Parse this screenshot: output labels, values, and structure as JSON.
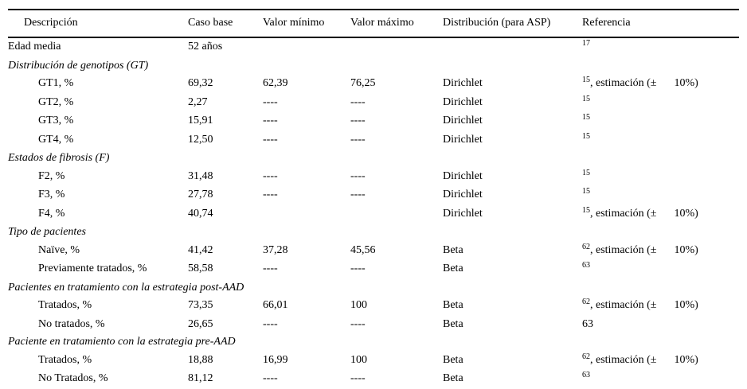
{
  "table": {
    "columns": [
      "Descripción",
      "Caso base",
      "Valor mínimo",
      "Valor máximo",
      "Distribución (para ASP)",
      "Referencia"
    ],
    "rows": [
      {
        "type": "data",
        "indent": false,
        "desc": "Edad media",
        "base": "52 años",
        "min": "",
        "max": "",
        "dist": "",
        "ref_sup": "17",
        "ref_text": "",
        "ref_pct": "",
        "ref_plain": ""
      },
      {
        "type": "section",
        "desc": "Distribución de genotipos (GT)"
      },
      {
        "type": "data",
        "indent": true,
        "desc": "GT1, %",
        "base": "69,32",
        "min": "62,39",
        "max": "76,25",
        "dist": "Dirichlet",
        "ref_sup": "15",
        "ref_text": ", estimación (±",
        "ref_pct": "10%)",
        "ref_plain": ""
      },
      {
        "type": "data",
        "indent": true,
        "desc": "GT2, %",
        "base": "2,27",
        "min": "----",
        "max": "----",
        "dist": "Dirichlet",
        "ref_sup": "15",
        "ref_text": "",
        "ref_pct": "",
        "ref_plain": ""
      },
      {
        "type": "data",
        "indent": true,
        "desc": "GT3, %",
        "base": "15,91",
        "min": "----",
        "max": "----",
        "dist": "Dirichlet",
        "ref_sup": "15",
        "ref_text": "",
        "ref_pct": "",
        "ref_plain": ""
      },
      {
        "type": "data",
        "indent": true,
        "desc": "GT4, %",
        "base": "12,50",
        "min": "----",
        "max": "----",
        "dist": "Dirichlet",
        "ref_sup": "15",
        "ref_text": "",
        "ref_pct": "",
        "ref_plain": ""
      },
      {
        "type": "section",
        "desc": "Estados de fibrosis (F)"
      },
      {
        "type": "data",
        "indent": true,
        "desc": "F2, %",
        "base": "31,48",
        "min": "----",
        "max": "----",
        "dist": "Dirichlet",
        "ref_sup": "15",
        "ref_text": "",
        "ref_pct": "",
        "ref_plain": ""
      },
      {
        "type": "data",
        "indent": true,
        "desc": "F3, %",
        "base": "27,78",
        "min": "----",
        "max": "----",
        "dist": "Dirichlet",
        "ref_sup": "15",
        "ref_text": "",
        "ref_pct": "",
        "ref_plain": ""
      },
      {
        "type": "data",
        "indent": true,
        "desc": "F4, %",
        "base": "40,74",
        "min": "",
        "max": "",
        "dist": "Dirichlet",
        "ref_sup": "15",
        "ref_text": ", estimación (±",
        "ref_pct": "10%)",
        "ref_plain": ""
      },
      {
        "type": "section",
        "desc": "Tipo de pacientes"
      },
      {
        "type": "data",
        "indent": true,
        "desc": "Naïve, %",
        "base": "41,42",
        "min": "37,28",
        "max": "45,56",
        "dist": "Beta",
        "ref_sup": "62",
        "ref_text": ", estimación (±",
        "ref_pct": "10%)",
        "ref_plain": ""
      },
      {
        "type": "data",
        "indent": true,
        "desc": "Previamente tratados, %",
        "base": "58,58",
        "min": "----",
        "max": "----",
        "dist": "Beta",
        "ref_sup": "63",
        "ref_text": "",
        "ref_pct": "",
        "ref_plain": ""
      },
      {
        "type": "section",
        "desc": "Pacientes en tratamiento con la estrategia post-AAD"
      },
      {
        "type": "data",
        "indent": true,
        "desc": "Tratados, %",
        "base": "73,35",
        "min": "66,01",
        "max": "100",
        "dist": "Beta",
        "ref_sup": "62",
        "ref_text": ", estimación (±",
        "ref_pct": "10%)",
        "ref_plain": ""
      },
      {
        "type": "data",
        "indent": true,
        "desc": "No tratados, %",
        "base": "26,65",
        "min": "----",
        "max": "----",
        "dist": "Beta",
        "ref_sup": "",
        "ref_text": "",
        "ref_pct": "",
        "ref_plain": "63"
      },
      {
        "type": "section",
        "desc": "Paciente en tratamiento con la estrategia pre-AAD"
      },
      {
        "type": "data",
        "indent": true,
        "desc": "Tratados, %",
        "base": "18,88",
        "min": "16,99",
        "max": "100",
        "dist": "Beta",
        "ref_sup": "62",
        "ref_text": ", estimación (±",
        "ref_pct": "10%)",
        "ref_plain": ""
      },
      {
        "type": "data",
        "indent": true,
        "desc": "No Tratados, %",
        "base": "81,12",
        "min": "----",
        "max": "----",
        "dist": "Beta",
        "ref_sup": "63",
        "ref_text": "",
        "ref_pct": "",
        "ref_plain": ""
      }
    ]
  }
}
